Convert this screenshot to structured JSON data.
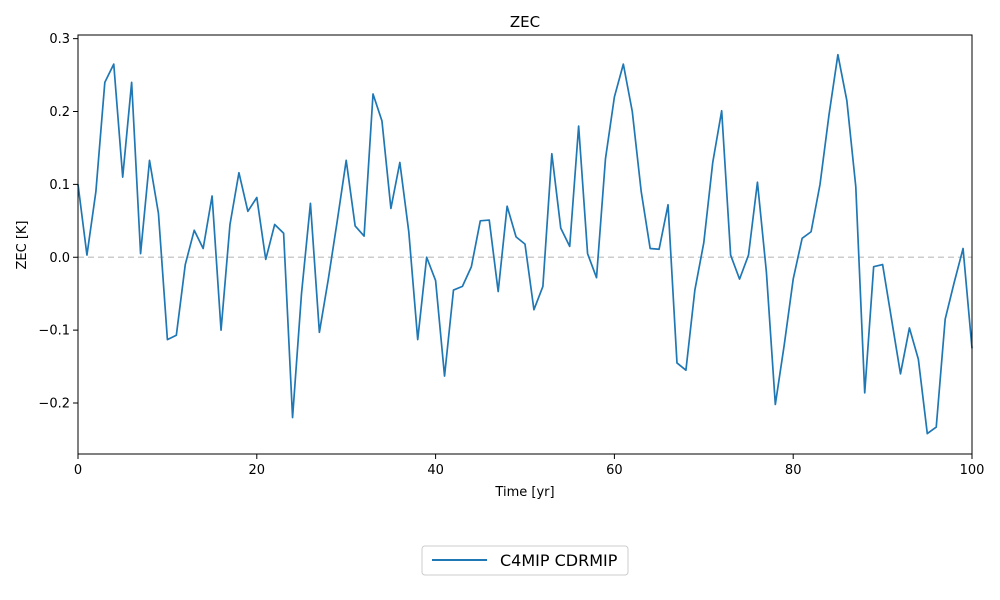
{
  "chart_data": {
    "type": "line",
    "title": "ZEC",
    "xlabel": "Time [yr]",
    "ylabel": "ZEC [K]",
    "xlim": [
      0,
      100
    ],
    "ylim": [
      -0.27,
      0.305
    ],
    "xticks": [
      0,
      20,
      40,
      60,
      80,
      100
    ],
    "yticks": [
      -0.2,
      -0.1,
      0.0,
      0.1,
      0.2,
      0.3
    ],
    "ytick_labels": [
      "−0.2",
      "−0.1",
      "0.0",
      "0.1",
      "0.2",
      "0.3"
    ],
    "grid": false,
    "legend_position": "bottom-center",
    "reference_line": {
      "y": 0.0,
      "style": "dashed",
      "color": "#cccccc"
    },
    "series": [
      {
        "name": "C4MIP CDRMIP",
        "color": "#1f77b4",
        "x": [
          0,
          1,
          2,
          3,
          4,
          5,
          6,
          7,
          8,
          9,
          10,
          11,
          12,
          13,
          14,
          15,
          16,
          17,
          18,
          19,
          20,
          21,
          22,
          23,
          24,
          25,
          26,
          27,
          28,
          29,
          30,
          31,
          32,
          33,
          34,
          35,
          36,
          37,
          38,
          39,
          40,
          41,
          42,
          43,
          44,
          45,
          46,
          47,
          48,
          49,
          50,
          51,
          52,
          53,
          54,
          55,
          56,
          57,
          58,
          59,
          60,
          61,
          62,
          63,
          64,
          65,
          66,
          67,
          68,
          69,
          70,
          71,
          72,
          73,
          74,
          75,
          76,
          77,
          78,
          79,
          80,
          81,
          82,
          83,
          84,
          85,
          86,
          87,
          88,
          89,
          90,
          91,
          92,
          93,
          94,
          95,
          96,
          97,
          98,
          99,
          100
        ],
        "values": [
          0.1,
          0.003,
          0.09,
          0.24,
          0.265,
          0.11,
          0.24,
          0.005,
          0.133,
          0.06,
          -0.113,
          -0.107,
          -0.01,
          0.037,
          0.012,
          0.084,
          -0.1,
          0.045,
          0.116,
          0.063,
          0.082,
          -0.003,
          0.045,
          0.033,
          -0.22,
          -0.05,
          0.074,
          -0.103,
          -0.03,
          0.05,
          0.133,
          0.043,
          0.029,
          0.224,
          0.187,
          0.067,
          0.13,
          0.035,
          -0.113,
          0.0,
          -0.032,
          -0.163,
          -0.045,
          -0.04,
          -0.013,
          0.05,
          0.051,
          -0.047,
          0.07,
          0.028,
          0.018,
          -0.072,
          -0.04,
          0.142,
          0.04,
          0.015,
          0.18,
          0.005,
          -0.028,
          0.135,
          0.22,
          0.265,
          0.2,
          0.09,
          0.012,
          0.011,
          0.072,
          -0.145,
          -0.155,
          -0.045,
          0.02,
          0.13,
          0.201,
          0.003,
          -0.03,
          0.003,
          0.103,
          -0.02,
          -0.202,
          -0.12,
          -0.03,
          0.026,
          0.035,
          0.1,
          0.195,
          0.278,
          0.215,
          0.097,
          -0.186,
          -0.013,
          -0.01,
          -0.085,
          -0.16,
          -0.097,
          -0.14,
          -0.242,
          -0.233,
          -0.085,
          -0.035,
          0.012,
          -0.125
        ]
      }
    ]
  }
}
